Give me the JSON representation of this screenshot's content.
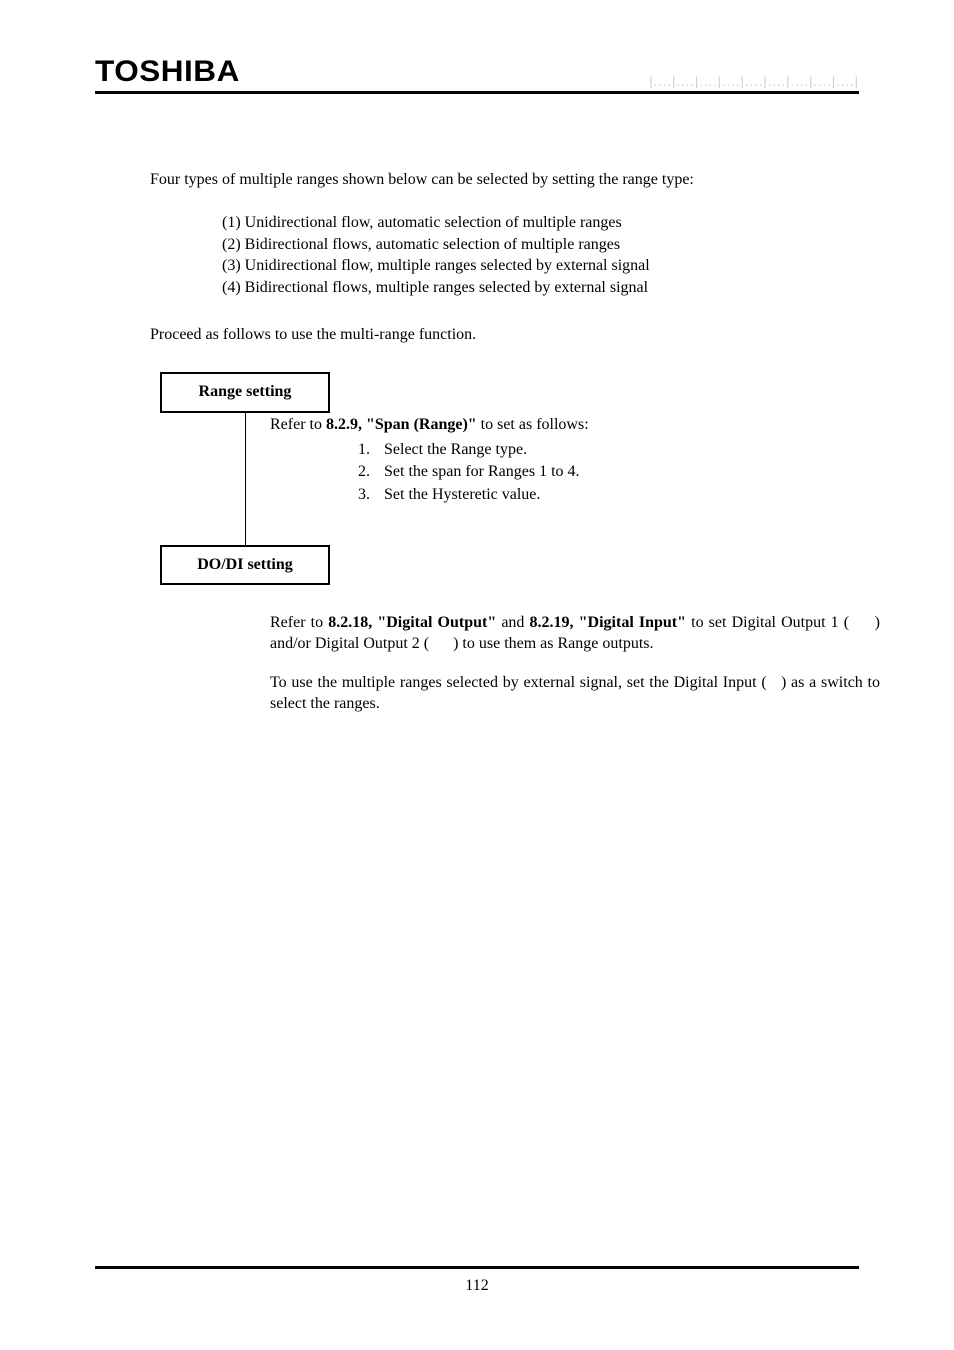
{
  "header": {
    "logo_text": "TOSHIBA",
    "right_marks": "|....|....|....|....|....|....|....|....|....|"
  },
  "intro": "Four types of multiple ranges shown below can be selected by setting the range type:",
  "types": [
    "(1) Unidirectional flow, automatic selection of multiple ranges",
    "(2) Bidirectional flows, automatic selection of multiple ranges",
    "(3) Unidirectional flow, multiple ranges selected by external signal",
    "(4) Bidirectional flows, multiple ranges selected by external signal"
  ],
  "proceed": "Proceed as follows to use the multi-range function.",
  "flow": {
    "range_box": "Range setting",
    "dodi_box": "DO/DI setting"
  },
  "range_section": {
    "prefix": "Refer to ",
    "ref_bold": "8.2.9, \"Span (Range)\"",
    "suffix": " to set as follows:",
    "steps": [
      {
        "n": "1.",
        "t": "Select the Range type."
      },
      {
        "n": "2.",
        "t": "Set the span for Ranges 1 to 4."
      },
      {
        "n": "3.",
        "t": "Set the Hysteretic value."
      }
    ]
  },
  "dodi_section": {
    "p1_prefix": "Refer to ",
    "p1_bold1": "8.2.18, \"Digital Output\"",
    "p1_mid": " and ",
    "p1_bold2": "8.2.19, \"Digital Input\"",
    "p1_suffix": " to set Digital Output 1 (     ) and/or Digital Output 2 (      ) to use them as Range outputs.",
    "p2": "To use the multiple ranges selected by external signal, set the Digital Input (   ) as a switch to select the ranges."
  },
  "page_number": "112"
}
